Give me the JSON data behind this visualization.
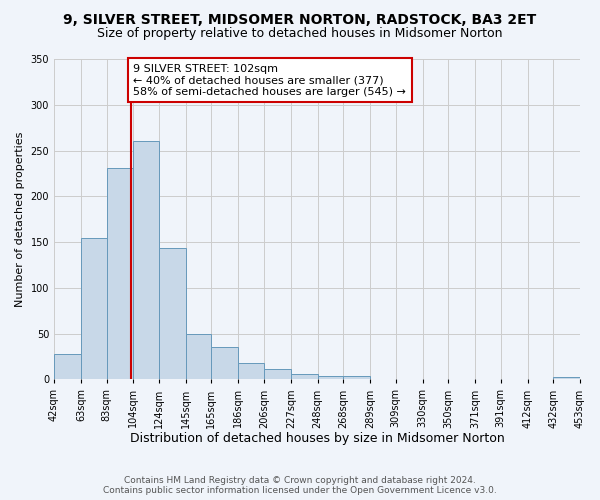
{
  "title": "9, SILVER STREET, MIDSOMER NORTON, RADSTOCK, BA3 2ET",
  "subtitle": "Size of property relative to detached houses in Midsomer Norton",
  "xlabel": "Distribution of detached houses by size in Midsomer Norton",
  "ylabel": "Number of detached properties",
  "bar_values": [
    28,
    154,
    231,
    260,
    144,
    49,
    35,
    18,
    11,
    6,
    4,
    4,
    0,
    0,
    0,
    0,
    0,
    0,
    0,
    3
  ],
  "bin_edges": [
    42,
    63,
    83,
    104,
    124,
    145,
    165,
    186,
    206,
    227,
    248,
    268,
    289,
    309,
    330,
    350,
    371,
    391,
    412,
    432,
    453
  ],
  "tick_labels": [
    "42sqm",
    "63sqm",
    "83sqm",
    "104sqm",
    "124sqm",
    "145sqm",
    "165sqm",
    "186sqm",
    "206sqm",
    "227sqm",
    "248sqm",
    "268sqm",
    "289sqm",
    "309sqm",
    "330sqm",
    "350sqm",
    "371sqm",
    "391sqm",
    "412sqm",
    "432sqm",
    "453sqm"
  ],
  "bar_color": "#c8d8e8",
  "bar_edge_color": "#6699bb",
  "vline_x": 102,
  "vline_color": "#cc0000",
  "annotation_text": "9 SILVER STREET: 102sqm\n← 40% of detached houses are smaller (377)\n58% of semi-detached houses are larger (545) →",
  "annotation_box_color": "#ffffff",
  "annotation_box_edge": "#cc0000",
  "ylim": [
    0,
    350
  ],
  "yticks": [
    0,
    50,
    100,
    150,
    200,
    250,
    300,
    350
  ],
  "grid_color": "#cccccc",
  "background_color": "#f0f4fa",
  "footer_line1": "Contains HM Land Registry data © Crown copyright and database right 2024.",
  "footer_line2": "Contains public sector information licensed under the Open Government Licence v3.0.",
  "title_fontsize": 10,
  "subtitle_fontsize": 9,
  "xlabel_fontsize": 9,
  "ylabel_fontsize": 8,
  "tick_fontsize": 7,
  "annotation_fontsize": 8,
  "footer_fontsize": 6.5
}
